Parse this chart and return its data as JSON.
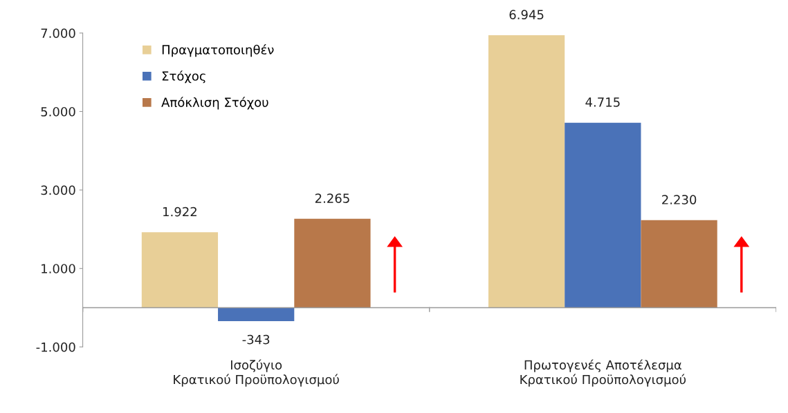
{
  "chart_data": {
    "type": "bar",
    "categories": [
      "Ισοζύγιο\nΚρατικού Προϋπολογισμού",
      "Πρωτογενές Αποτέλεσμα\nΚρατικού Προϋπολογισμού"
    ],
    "series": [
      {
        "name": "Πραγματοποιηθέν",
        "color": "#e8cf97",
        "values": [
          1922,
          6945
        ],
        "value_labels": [
          "1.922",
          "6.945"
        ]
      },
      {
        "name": "Στόχος",
        "color": "#4a72b8",
        "values": [
          -343,
          4715
        ],
        "value_labels": [
          "-343",
          "4.715"
        ]
      },
      {
        "name": "Απόκλιση Στόχου",
        "color": "#b8784a",
        "values": [
          2265,
          2230
        ],
        "value_labels": [
          "2.265",
          "2.230"
        ]
      }
    ],
    "ylim": [
      -1000,
      7000
    ],
    "yticks": [
      {
        "value": -1000,
        "label": "-1.000"
      },
      {
        "value": 1000,
        "label": "1.000"
      },
      {
        "value": 3000,
        "label": "3.000"
      },
      {
        "value": 5000,
        "label": "5.000"
      },
      {
        "value": 7000,
        "label": "7.000"
      }
    ],
    "grid": false,
    "legend": "top left"
  }
}
